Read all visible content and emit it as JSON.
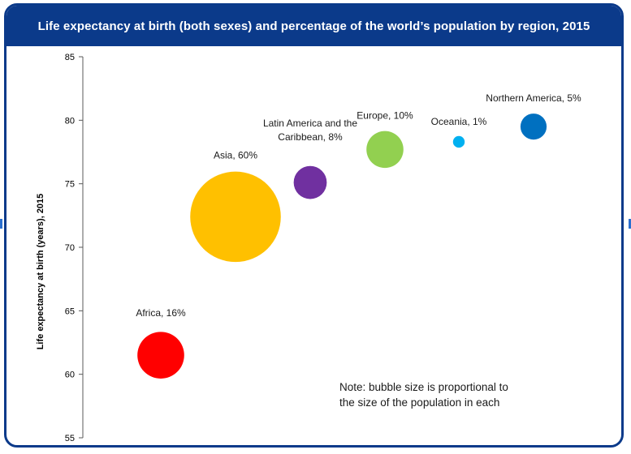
{
  "chart_data": {
    "type": "scatter",
    "title": "Life expectancy at birth (both sexes) and percentage of the world’s population by region, 2015",
    "ylabel": "Life expectancy at birth (years), 2015",
    "xlabel": "",
    "ylim": [
      55,
      85
    ],
    "yticks": [
      "55",
      "60",
      "65",
      "70",
      "75",
      "80",
      "85"
    ],
    "grid": false,
    "note": [
      "Note: bubble size is proportional to",
      "the size of the population in each"
    ],
    "points": [
      {
        "label": "Africa, 16%",
        "region": "Africa",
        "population_pct": 16,
        "y": 61.5,
        "color": "#ff0000"
      },
      {
        "label": "Asia, 60%",
        "region": "Asia",
        "population_pct": 60,
        "y": 72.4,
        "color": "#ffc000"
      },
      {
        "label": [
          "Latin America and the",
          "Caribbean, 8%"
        ],
        "region": "Latin America and the Caribbean",
        "population_pct": 8,
        "y": 75.1,
        "color": "#7030a0"
      },
      {
        "label": "Europe, 10%",
        "region": "Europe",
        "population_pct": 10,
        "y": 77.7,
        "color": "#92d050"
      },
      {
        "label": "Oceania, 1%",
        "region": "Oceania",
        "population_pct": 1,
        "y": 78.3,
        "color": "#00b0f0"
      },
      {
        "label": "Northern America, 5%",
        "region": "Northern America",
        "population_pct": 5,
        "y": 79.5,
        "color": "#0070c0"
      }
    ]
  }
}
